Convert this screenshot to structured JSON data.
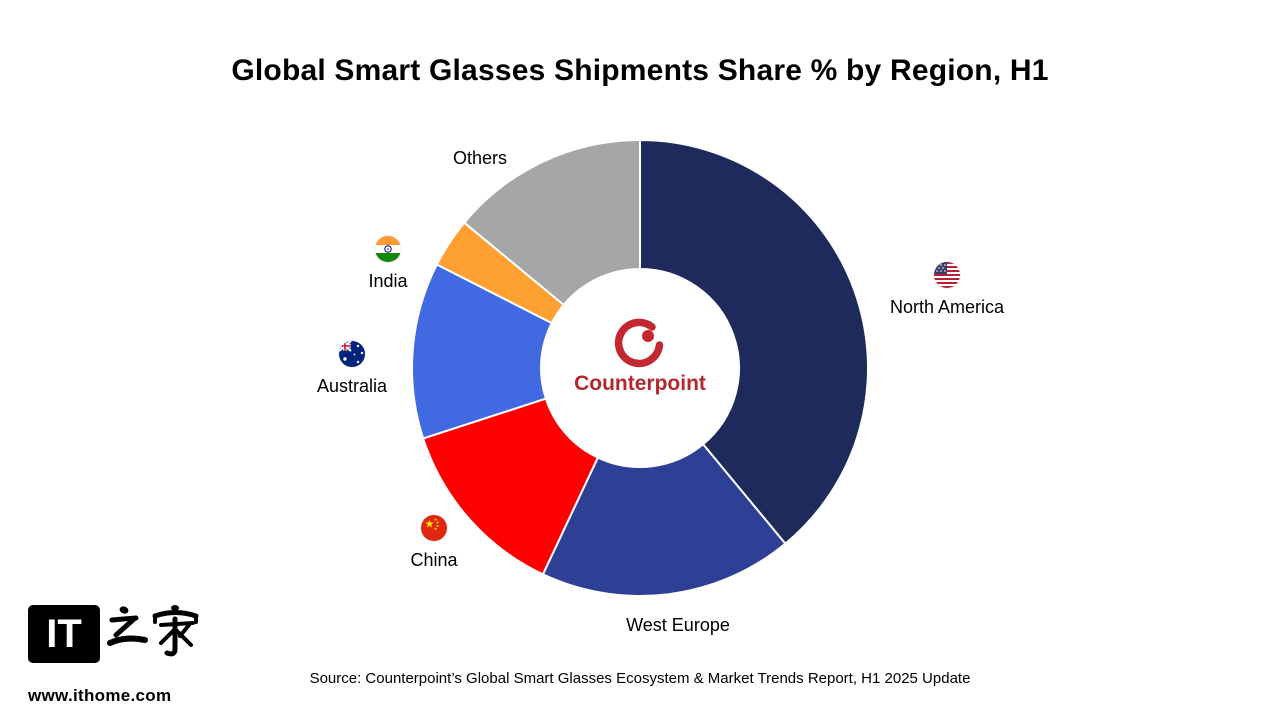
{
  "title": "Global Smart Glasses Shipments Share % by Region, H1",
  "source_note": "Source: Counterpoint’s Global Smart Glasses Ecosystem & Market Trends Report, H1 2025 Update",
  "center_logo": {
    "brand": "Counterpoint",
    "brand_color": "#B2282E",
    "mark_color": "#C3272F",
    "mark_icon": "counterpoint-logo-icon"
  },
  "footer": {
    "logo_text": "IT",
    "website": "www.ithome.com"
  },
  "chart_data": {
    "type": "pie",
    "donut": true,
    "title": "Global Smart Glasses Shipments Share % by Region, H1",
    "start_angle_deg": 0,
    "direction": "clockwise",
    "inner_radius_ratio": 0.43,
    "values_are_estimates_from_arc_angles": true,
    "legend_position": "labels-around-chart",
    "segments": [
      {
        "label": "North America",
        "value": 39,
        "color": "#1F2A5C",
        "flag_icon": "us-flag-icon"
      },
      {
        "label": "West Europe",
        "value": 18,
        "color": "#2E3F96",
        "flag_icon": null
      },
      {
        "label": "China",
        "value": 13,
        "color": "#FE0000",
        "flag_icon": "cn-flag-icon"
      },
      {
        "label": "Australia",
        "value": 12.5,
        "color": "#4169E1",
        "flag_icon": "au-flag-icon"
      },
      {
        "label": "India",
        "value": 3.5,
        "color": "#FFA033",
        "flag_icon": "in-flag-icon"
      },
      {
        "label": "Others",
        "value": 14,
        "color": "#A6A6A6",
        "flag_icon": null
      }
    ]
  }
}
